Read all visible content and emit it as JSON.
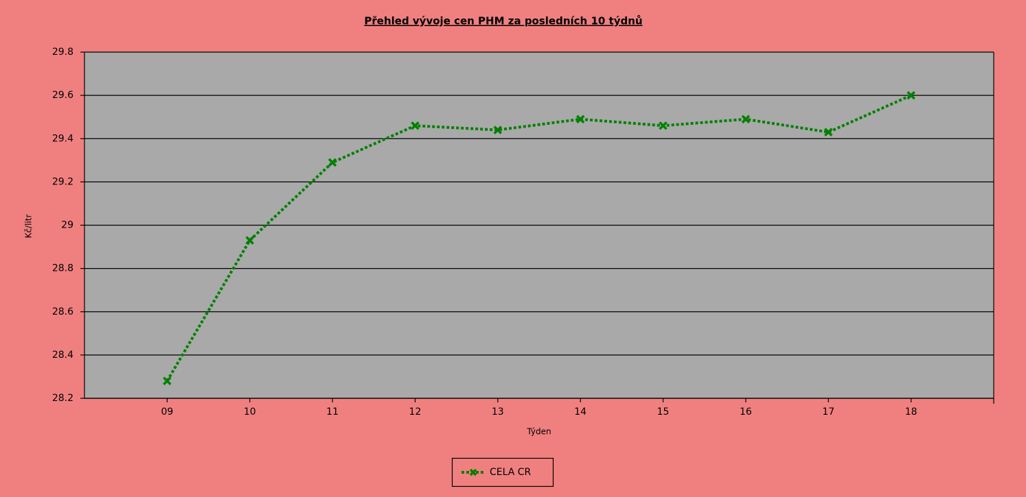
{
  "chart_data": {
    "type": "line",
    "title": "Přehled vývoje cen PHM za posledních 10 týdnů",
    "x_label": "Týden",
    "y_label": "Kč/litr",
    "categories": [
      "09",
      "10",
      "11",
      "12",
      "13",
      "14",
      "15",
      "16",
      "17",
      "18"
    ],
    "series": [
      {
        "name": "CELA CR",
        "color": "#008000",
        "values": [
          28.28,
          28.93,
          29.29,
          29.46,
          29.44,
          29.49,
          29.46,
          29.49,
          29.43,
          29.6
        ]
      }
    ],
    "ylim": [
      28.2,
      29.8
    ],
    "yticks": [
      28.2,
      28.4,
      28.6,
      28.8,
      29,
      29.2,
      29.4,
      29.6,
      29.8
    ],
    "grid": true,
    "legend": "bottom"
  }
}
